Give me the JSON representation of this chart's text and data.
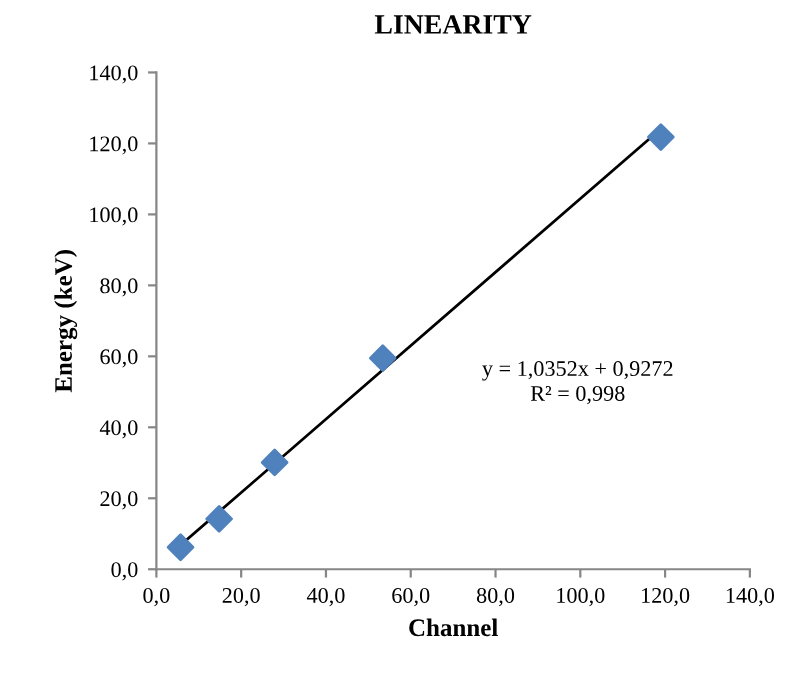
{
  "chart_data": {
    "type": "scatter",
    "title": "LINEARITY",
    "xlabel": "Channel",
    "ylabel": "Energy (keV)",
    "series": [
      {
        "color": "#4f81bd",
        "marker": "diamond",
        "x": [
          5.7,
          14.8,
          27.9,
          53.4,
          119.0
        ],
        "values": [
          6.2,
          14.2,
          30.1,
          59.5,
          121.8
        ]
      },
      {
        "type": "line",
        "color": "#000000",
        "marker": "none",
        "line_style": "solid",
        "x": [
          5.7,
          119.0
        ],
        "values": [
          6.8,
          124.1
        ]
      }
    ],
    "annotations": [
      "y = 1,0352x + 0,9272",
      "R² = 0,998"
    ],
    "xlim": [
      0,
      140
    ],
    "ylim": [
      0,
      140
    ],
    "xticks": [
      {
        "value": 0,
        "label": "0,0"
      },
      {
        "value": 20,
        "label": "20,0"
      },
      {
        "value": 40,
        "label": "40,0"
      },
      {
        "value": 60,
        "label": "60,0"
      },
      {
        "value": 80,
        "label": "80,0"
      },
      {
        "value": 100,
        "label": "100,0"
      },
      {
        "value": 120,
        "label": "120,0"
      },
      {
        "value": 140,
        "label": "140,0"
      }
    ],
    "yticks": [
      {
        "value": 0,
        "label": "0,0"
      },
      {
        "value": 20,
        "label": "20,0"
      },
      {
        "value": 40,
        "label": "40,0"
      },
      {
        "value": 60,
        "label": "60,0"
      },
      {
        "value": 80,
        "label": "80,0"
      },
      {
        "value": 100,
        "label": "100,0"
      },
      {
        "value": 120,
        "label": "120,0"
      },
      {
        "value": 140,
        "label": "140,0"
      }
    ],
    "grid": false,
    "legend": false
  }
}
